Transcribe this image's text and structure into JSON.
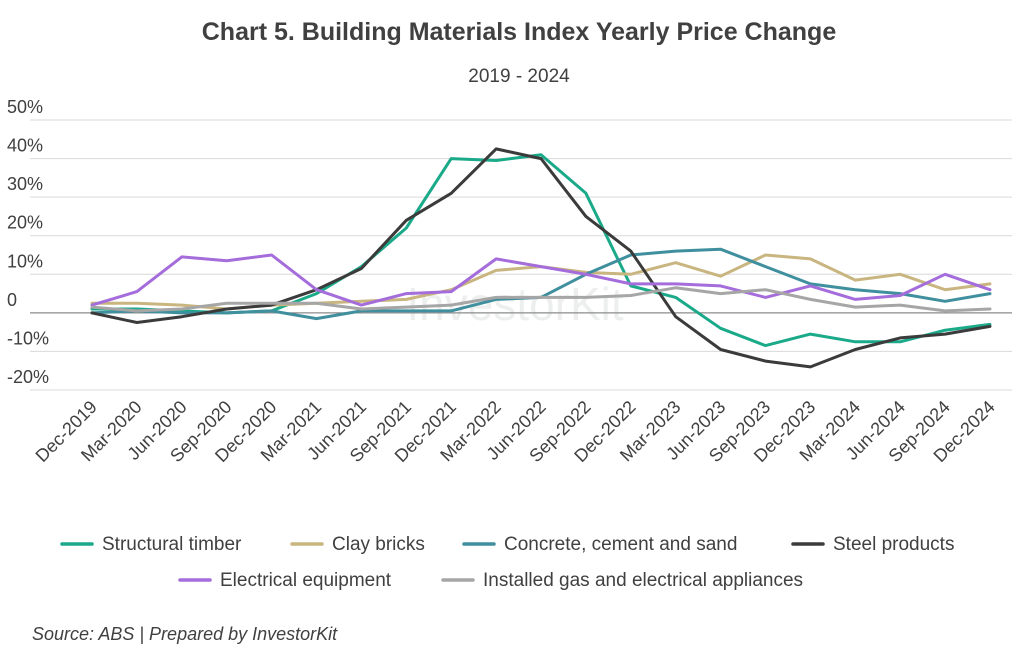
{
  "chart_data": {
    "type": "line",
    "title": "Chart 5. Building Materials Index Yearly Price Change",
    "subtitle": "2019 - 2024",
    "source": "Source: ABS | Prepared by InvestorKit",
    "categories": [
      "Dec-2019",
      "Mar-2020",
      "Jun-2020",
      "Sep-2020",
      "Dec-2020",
      "Mar-2021",
      "Jun-2021",
      "Sep-2021",
      "Dec-2021",
      "Mar-2022",
      "Jun-2022",
      "Sep-2022",
      "Dec-2022",
      "Mar-2023",
      "Jun-2023",
      "Sep-2023",
      "Dec-2023",
      "Mar-2024",
      "Jun-2024",
      "Sep-2024",
      "Dec-2024"
    ],
    "y_ticks": [
      {
        "value": 50,
        "label": "50%"
      },
      {
        "value": 40,
        "label": "40%"
      },
      {
        "value": 30,
        "label": "30%"
      },
      {
        "value": 20,
        "label": "20%"
      },
      {
        "value": 10,
        "label": "10%"
      },
      {
        "value": 0,
        "label": "0"
      },
      {
        "value": -10,
        "label": "-10%"
      },
      {
        "value": -20,
        "label": "-20%"
      }
    ],
    "ylim": [
      -20,
      50
    ],
    "grid": true,
    "legend_position": "bottom",
    "series": [
      {
        "name": "Structural timber",
        "color": "#1aaa8a",
        "values": [
          1,
          1,
          0.5,
          0,
          0.5,
          5,
          12,
          22,
          40,
          39.5,
          41,
          31,
          7,
          4,
          -4,
          -8.5,
          -5.5,
          -7.5,
          -7.5,
          -4.5,
          -3
        ]
      },
      {
        "name": "Clay bricks",
        "color": "#c8b57f",
        "values": [
          2.5,
          2.5,
          2,
          1,
          2,
          2.5,
          3,
          3.5,
          6,
          11,
          12,
          10.5,
          10,
          13,
          9.5,
          15,
          14,
          8.5,
          10,
          6,
          7.5
        ]
      },
      {
        "name": "Concrete, cement and sand",
        "color": "#3f8f9e",
        "values": [
          0,
          0.5,
          0,
          0,
          0.5,
          -1.5,
          0.5,
          0.5,
          0.5,
          3.5,
          4,
          10,
          15,
          16,
          16.5,
          12,
          7.5,
          6,
          5,
          3,
          5
        ]
      },
      {
        "name": "Steel products",
        "color": "#3b3b3b",
        "values": [
          0,
          -2.5,
          -1,
          1,
          2,
          6,
          11.5,
          24,
          31,
          42.5,
          40,
          25,
          16,
          -1,
          -9.5,
          -12.5,
          -14,
          -9.5,
          -6.5,
          -5.5,
          -3.5
        ]
      },
      {
        "name": "Electrical equipment",
        "color": "#a46ddb",
        "values": [
          2,
          5.5,
          14.5,
          13.5,
          15,
          6,
          2,
          5,
          5.5,
          14,
          12,
          10,
          7.5,
          7.5,
          7,
          4,
          7,
          3.5,
          4.5,
          10,
          6
        ]
      },
      {
        "name": "Installed gas and electrical appliances",
        "color": "#a6a6a6",
        "values": [
          1.5,
          0.5,
          1,
          2.5,
          2.5,
          2.5,
          1,
          1.5,
          2,
          4,
          4,
          4,
          4.5,
          6.5,
          5,
          6,
          3.5,
          1.5,
          2,
          0.5,
          1
        ]
      }
    ]
  },
  "watermark": "InvestorKit"
}
